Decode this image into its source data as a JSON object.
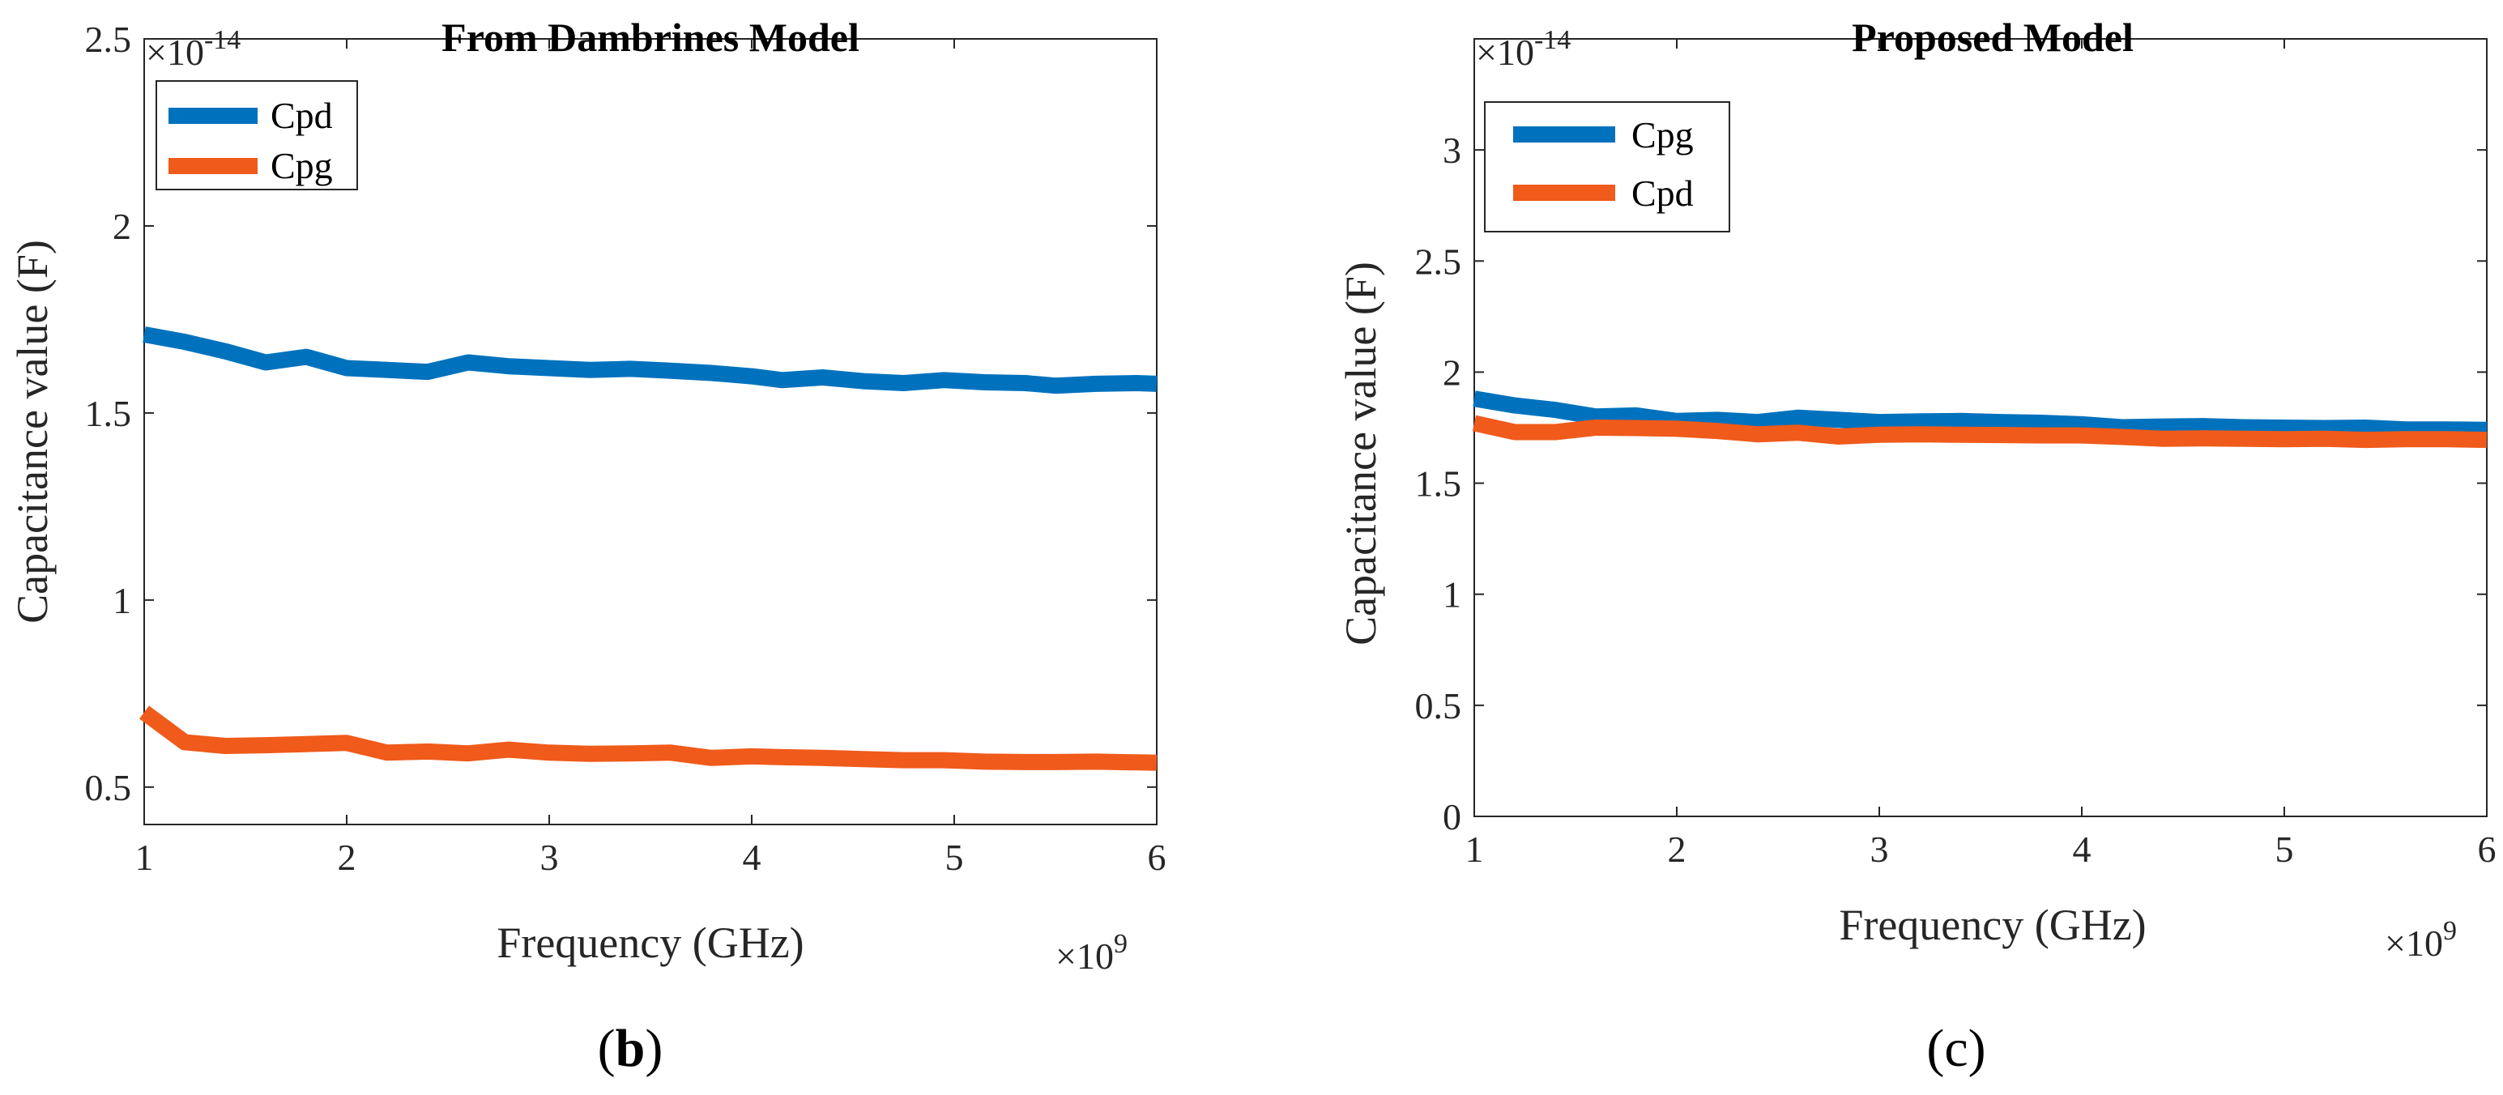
{
  "chart_data": [
    {
      "type": "line",
      "panel_label": "b",
      "title": "From Dambrines Model",
      "xlabel": "Frequency (GHz)",
      "ylabel": "Capacitance value (F)",
      "x_multiplier_base": "×10",
      "x_multiplier_exp": "9",
      "y_multiplier_base": "×10",
      "y_multiplier_exp": "-14",
      "xlim": [
        1,
        6
      ],
      "ylim": [
        0.4,
        2.5
      ],
      "xticks": [
        1,
        2,
        3,
        4,
        5,
        6
      ],
      "yticks": [
        0.5,
        1,
        1.5,
        2,
        2.5
      ],
      "ytick_labels": [
        "0.5",
        "1",
        "1.5",
        "2",
        "2.5"
      ],
      "legend_position": "top-left",
      "x": [
        1.0,
        1.2,
        1.4,
        1.6,
        1.8,
        2.0,
        2.2,
        2.4,
        2.6,
        2.8,
        3.0,
        3.2,
        3.4,
        3.6,
        3.8,
        4.0,
        4.15,
        4.35,
        4.55,
        4.75,
        4.95,
        5.15,
        5.35,
        5.5,
        5.7,
        5.9,
        6.0
      ],
      "series": [
        {
          "name": "Cpd",
          "color": "#0072BD",
          "values": [
            1.71,
            1.69,
            1.665,
            1.635,
            1.65,
            1.62,
            1.615,
            1.61,
            1.635,
            1.625,
            1.62,
            1.615,
            1.618,
            1.613,
            1.607,
            1.598,
            1.588,
            1.595,
            1.585,
            1.58,
            1.588,
            1.582,
            1.58,
            1.573,
            1.578,
            1.58,
            1.578
          ]
        },
        {
          "name": "Cpg",
          "color": "#F05A1A",
          "values": [
            0.7,
            0.62,
            0.61,
            0.612,
            0.615,
            0.618,
            0.592,
            0.595,
            0.59,
            0.6,
            0.592,
            0.589,
            0.59,
            0.592,
            0.578,
            0.582,
            0.58,
            0.578,
            0.575,
            0.572,
            0.572,
            0.568,
            0.567,
            0.567,
            0.568,
            0.566,
            0.565
          ]
        }
      ]
    },
    {
      "type": "line",
      "panel_label": "c",
      "title": "Proposed Model",
      "xlabel": "Frequency (GHz)",
      "ylabel": "Capacitance value (F)",
      "x_multiplier_base": "×10",
      "x_multiplier_exp": "9",
      "y_multiplier_base": "×10",
      "y_multiplier_exp": "-14",
      "xlim": [
        1,
        6
      ],
      "ylim": [
        0,
        3.5
      ],
      "xticks": [
        1,
        2,
        3,
        4,
        5,
        6
      ],
      "yticks": [
        0,
        0.5,
        1,
        1.5,
        2,
        2.5,
        3
      ],
      "ytick_labels": [
        "0",
        "0.5",
        "1",
        "1.5",
        "2",
        "2.5",
        "3"
      ],
      "legend_position": "top-left",
      "x": [
        1.0,
        1.2,
        1.4,
        1.6,
        1.8,
        2.0,
        2.2,
        2.4,
        2.6,
        2.8,
        3.0,
        3.2,
        3.4,
        3.6,
        3.8,
        4.0,
        4.2,
        4.4,
        4.6,
        4.8,
        5.0,
        5.2,
        5.4,
        5.6,
        5.8,
        6.0
      ],
      "series": [
        {
          "name": "Cpg",
          "color": "#0072BD",
          "values": [
            1.88,
            1.85,
            1.83,
            1.8,
            1.805,
            1.78,
            1.785,
            1.775,
            1.795,
            1.785,
            1.775,
            1.778,
            1.78,
            1.775,
            1.772,
            1.765,
            1.752,
            1.755,
            1.757,
            1.752,
            1.75,
            1.748,
            1.75,
            1.742,
            1.742,
            1.74
          ]
        },
        {
          "name": "Cpd",
          "color": "#F05A1A",
          "values": [
            1.77,
            1.73,
            1.73,
            1.75,
            1.748,
            1.745,
            1.735,
            1.72,
            1.727,
            1.71,
            1.718,
            1.72,
            1.718,
            1.717,
            1.715,
            1.715,
            1.708,
            1.7,
            1.702,
            1.7,
            1.698,
            1.7,
            1.695,
            1.698,
            1.698,
            1.695
          ]
        }
      ]
    }
  ],
  "captions": {
    "b_open": "(",
    "b_letter": "b",
    "b_close": ")",
    "c_text": "(c)"
  }
}
